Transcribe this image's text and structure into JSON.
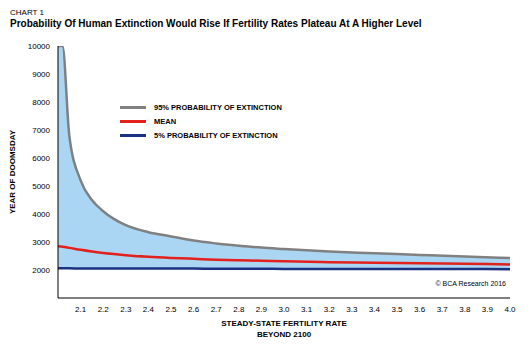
{
  "chart_data": {
    "type": "band",
    "label": "CHART 1",
    "title": "Probability Of Human Extinction Would Rise If Fertility Rates Plateau At A Higher Level",
    "x_label": [
      "STEADY-STATE FERTILITY RATE",
      "BEYOND 2100"
    ],
    "y_label": "YEAR OF DOOMSDAY",
    "source": "© BCA Research 2016",
    "x": [
      2.0,
      2.02,
      2.05,
      2.1,
      2.15,
      2.2,
      2.3,
      2.4,
      2.5,
      2.6,
      2.7,
      2.8,
      2.9,
      3.0,
      3.2,
      3.4,
      3.6,
      3.8,
      4.0
    ],
    "series": [
      {
        "name": "95% PROBABILITY OF EXTINCTION",
        "color": "#808080",
        "values": [
          10000,
          10000,
          6800,
          5200,
          4500,
          4100,
          3600,
          3350,
          3200,
          3050,
          2950,
          2870,
          2800,
          2750,
          2660,
          2600,
          2540,
          2480,
          2430
        ]
      },
      {
        "name": "MEAN",
        "color": "#e3211c",
        "values": [
          2850,
          2830,
          2790,
          2720,
          2660,
          2610,
          2530,
          2470,
          2430,
          2400,
          2370,
          2350,
          2330,
          2310,
          2280,
          2260,
          2240,
          2220,
          2200
        ]
      },
      {
        "name": "5% PROBABILITY OF EXTINCTION",
        "color": "#1b3282",
        "values": [
          2060,
          2060,
          2060,
          2055,
          2055,
          2055,
          2050,
          2050,
          2050,
          2050,
          2045,
          2045,
          2045,
          2040,
          2040,
          2040,
          2035,
          2035,
          2030
        ]
      }
    ],
    "xlim": [
      2.0,
      4.0
    ],
    "xticks": [
      2.1,
      2.2,
      2.3,
      2.4,
      2.5,
      2.6,
      2.7,
      2.8,
      2.9,
      {
        "value": 3,
        "label": "3.0"
      },
      3.1,
      3.2,
      3.3,
      3.4,
      3.5,
      3.6,
      3.7,
      3.8,
      3.9,
      {
        "value": 4,
        "label": "4.0"
      }
    ],
    "ylim": [
      1000,
      10000
    ],
    "yticks": [
      2000,
      3000,
      4000,
      5000,
      6000,
      7000,
      8000,
      9000,
      10000
    ],
    "grid": false,
    "legend": "upper left"
  }
}
